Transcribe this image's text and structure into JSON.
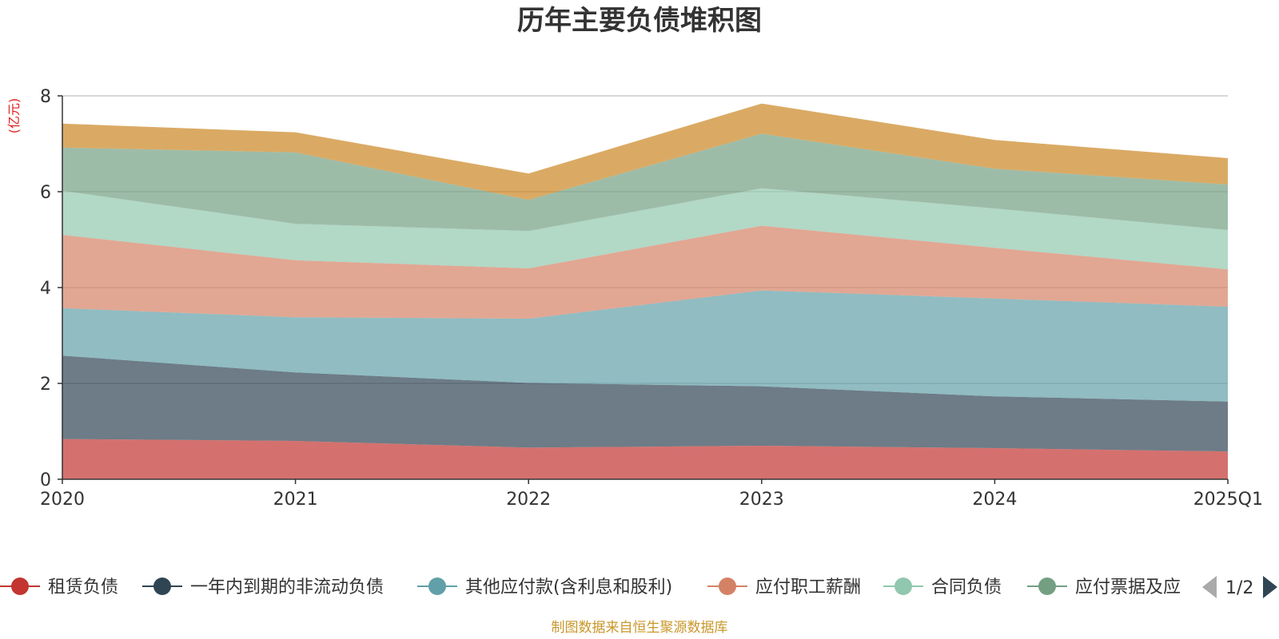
{
  "page": {
    "title": "历年主要负债堆积图",
    "source": "制图数据来自恒生聚源数据库"
  },
  "chart_data": {
    "type": "area",
    "stacked": true,
    "title": "历年主要负债堆积图",
    "ylabel": "(亿元)",
    "ylim": [
      0,
      8
    ],
    "yticks": [
      0,
      2,
      4,
      6,
      8
    ],
    "categories": [
      "2020",
      "2021",
      "2022",
      "2023",
      "2024",
      "2025Q1"
    ],
    "grid": true,
    "legend_position": "bottom",
    "legend_page": "1/2",
    "series": [
      {
        "name": "租赁负债",
        "color": "#c23531",
        "values": [
          0.84,
          0.8,
          0.66,
          0.7,
          0.65,
          0.58
        ]
      },
      {
        "name": "一年内到期的非流动负债",
        "color": "#2f4554",
        "values": [
          1.74,
          1.43,
          1.35,
          1.24,
          1.08,
          1.04
        ]
      },
      {
        "name": "其他应付款(含利息和股利)",
        "color": "#61a0a8",
        "values": [
          0.99,
          1.15,
          1.34,
          2.0,
          2.04,
          1.98
        ]
      },
      {
        "name": "应付职工薪酬",
        "color": "#d48265",
        "values": [
          1.53,
          1.19,
          1.05,
          1.35,
          1.06,
          0.78
        ]
      },
      {
        "name": "合同负债",
        "color": "#91c7ae",
        "values": [
          0.92,
          0.76,
          0.78,
          0.78,
          0.82,
          0.82
        ]
      },
      {
        "name": "应付票据及应付账款",
        "legend_label": "应付票据及应",
        "color": "#749f83",
        "values": [
          0.9,
          1.49,
          0.65,
          1.14,
          0.83,
          0.95
        ]
      },
      {
        "name": "",
        "color": "#ca8622",
        "values": [
          0.5,
          0.42,
          0.55,
          0.63,
          0.6,
          0.55
        ]
      }
    ]
  }
}
